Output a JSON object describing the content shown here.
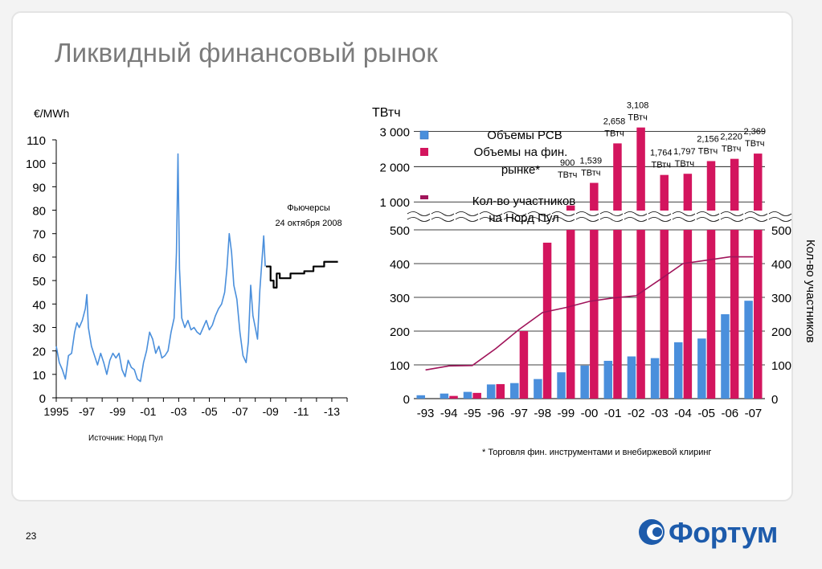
{
  "slide": {
    "title": "Ликвидный финансовый рынок",
    "page_number": "23",
    "logo_text": "Фортум",
    "colors": {
      "title": "#7b7b7b",
      "logo": "#1d5bab",
      "blue": "#4a8fdc",
      "magenta": "#d3155e",
      "line": "#a0145a"
    }
  },
  "chart_data": [
    {
      "type": "line",
      "unit_label": "€/MWh",
      "ylim": [
        0,
        110
      ],
      "y_ticks": [
        "0",
        "10",
        "20",
        "30",
        "40",
        "50",
        "60",
        "70",
        "80",
        "90",
        "100",
        "110"
      ],
      "x_tick_labels": [
        "1995",
        "-97",
        "-99",
        "-01",
        "-03",
        "-05",
        "-07",
        "-09",
        "-11",
        "-13"
      ],
      "xlim": [
        1995,
        2014
      ],
      "annotation": [
        "Фьючерсы",
        "24 октября 2008"
      ],
      "source": "Источник: Норд Пул",
      "series": [
        {
          "color": "#4a8fdc",
          "points": [
            [
              1995.0,
              22
            ],
            [
              1995.2,
              15
            ],
            [
              1995.4,
              12
            ],
            [
              1995.6,
              8
            ],
            [
              1995.8,
              18
            ],
            [
              1996.0,
              19
            ],
            [
              1996.2,
              28
            ],
            [
              1996.35,
              32
            ],
            [
              1996.5,
              30
            ],
            [
              1996.7,
              33
            ],
            [
              1996.9,
              38
            ],
            [
              1997.0,
              44
            ],
            [
              1997.1,
              30
            ],
            [
              1997.3,
              22
            ],
            [
              1997.5,
              18
            ],
            [
              1997.7,
              14
            ],
            [
              1997.9,
              19
            ],
            [
              1998.1,
              15
            ],
            [
              1998.3,
              10
            ],
            [
              1998.5,
              16
            ],
            [
              1998.7,
              19
            ],
            [
              1998.9,
              17
            ],
            [
              1999.1,
              19
            ],
            [
              1999.3,
              12
            ],
            [
              1999.5,
              9
            ],
            [
              1999.7,
              16
            ],
            [
              1999.9,
              13
            ],
            [
              2000.1,
              12
            ],
            [
              2000.3,
              8
            ],
            [
              2000.5,
              7
            ],
            [
              2000.7,
              15
            ],
            [
              2000.9,
              20
            ],
            [
              2001.1,
              28
            ],
            [
              2001.3,
              25
            ],
            [
              2001.5,
              19
            ],
            [
              2001.7,
              22
            ],
            [
              2001.9,
              17
            ],
            [
              2002.1,
              18
            ],
            [
              2002.3,
              20
            ],
            [
              2002.5,
              28
            ],
            [
              2002.7,
              34
            ],
            [
              2002.85,
              62
            ],
            [
              2002.95,
              104
            ],
            [
              2003.05,
              55
            ],
            [
              2003.2,
              34
            ],
            [
              2003.4,
              30
            ],
            [
              2003.6,
              33
            ],
            [
              2003.8,
              29
            ],
            [
              2004.0,
              30
            ],
            [
              2004.2,
              28
            ],
            [
              2004.4,
              27
            ],
            [
              2004.6,
              30
            ],
            [
              2004.8,
              33
            ],
            [
              2005.0,
              29
            ],
            [
              2005.2,
              31
            ],
            [
              2005.4,
              35
            ],
            [
              2005.6,
              38
            ],
            [
              2005.8,
              40
            ],
            [
              2006.0,
              45
            ],
            [
              2006.15,
              55
            ],
            [
              2006.3,
              70
            ],
            [
              2006.45,
              62
            ],
            [
              2006.6,
              48
            ],
            [
              2006.8,
              42
            ],
            [
              2007.0,
              28
            ],
            [
              2007.2,
              18
            ],
            [
              2007.4,
              15
            ],
            [
              2007.55,
              24
            ],
            [
              2007.7,
              48
            ],
            [
              2007.85,
              35
            ],
            [
              2008.0,
              30
            ],
            [
              2008.15,
              25
            ],
            [
              2008.3,
              46
            ],
            [
              2008.45,
              60
            ],
            [
              2008.55,
              69
            ],
            [
              2008.65,
              56
            ]
          ]
        },
        {
          "color": "#000000",
          "points": [
            [
              2008.7,
              56
            ],
            [
              2008.9,
              56
            ],
            [
              2009.0,
              50
            ],
            [
              2009.2,
              47
            ],
            [
              2009.4,
              53
            ],
            [
              2009.6,
              51
            ],
            [
              2009.8,
              51
            ],
            [
              2010.0,
              51
            ],
            [
              2010.3,
              53
            ],
            [
              2010.6,
              53
            ],
            [
              2010.9,
              53
            ],
            [
              2011.2,
              54
            ],
            [
              2011.5,
              54
            ],
            [
              2011.8,
              56
            ],
            [
              2012.2,
              56
            ],
            [
              2012.5,
              58
            ],
            [
              2013.0,
              58
            ],
            [
              2013.4,
              58
            ]
          ]
        }
      ]
    },
    {
      "type": "bar",
      "left_axis_label": "ТВтч",
      "upper_y_ticks": [
        "1 000",
        "2 000",
        "3 000"
      ],
      "upper_ylim": [
        800,
        3100
      ],
      "lower_ylim": [
        0,
        500
      ],
      "left_lower_ticks": [
        "0",
        "100",
        "200",
        "300",
        "400",
        "500"
      ],
      "right_ticks": [
        "0",
        "100",
        "200",
        "300",
        "400",
        "500"
      ],
      "right_axis_label": "Кол-во участников",
      "categories": [
        "-93",
        "-94",
        "-95",
        "-96",
        "-97",
        "-98",
        "-99",
        "-00",
        "-01",
        "-02",
        "-03",
        "-04",
        "-05",
        "-06",
        "-07"
      ],
      "series": [
        {
          "name": "Объемы РСВ",
          "color": "#4a8fdc",
          "values": [
            10,
            15,
            20,
            42,
            46,
            58,
            78,
            98,
            112,
            125,
            120,
            167,
            178,
            250,
            290
          ]
        },
        {
          "name": "Объемы на фин. рынке*",
          "color": "#d3155e",
          "values": [
            0,
            8,
            17,
            43,
            200,
            462,
            900,
            1539,
            2658,
            3108,
            1764,
            1797,
            2156,
            2220,
            2369
          ]
        },
        {
          "name": "Кол-во участников на Норд Пул",
          "color": "#a0145a",
          "type": "line",
          "values": [
            85,
            97,
            98,
            148,
            205,
            255,
            270,
            288,
            298,
            305,
            352,
            400,
            410,
            420,
            420
          ]
        }
      ],
      "data_labels": [
        {
          "index": 6,
          "lines": [
            "900",
            "ТВтч"
          ]
        },
        {
          "index": 7,
          "lines": [
            "1,539",
            "ТВтч"
          ]
        },
        {
          "index": 8,
          "lines": [
            "2,658",
            "ТВтч"
          ]
        },
        {
          "index": 9,
          "lines": [
            "3,108",
            "ТВтч"
          ]
        },
        {
          "index": 10,
          "lines": [
            "1,764",
            "ТВтч"
          ]
        },
        {
          "index": 11,
          "lines": [
            "1,797",
            "ТВтч"
          ]
        },
        {
          "index": 12,
          "lines": [
            "2,156",
            "ТВтч"
          ]
        },
        {
          "index": 13,
          "lines": [
            "2,220",
            "ТВтч"
          ]
        },
        {
          "index": 14,
          "lines": [
            "2,369",
            "ТВтч"
          ]
        }
      ],
      "legend_lines": {
        "s1": [
          "Объемы РСВ"
        ],
        "s2": [
          "Объемы на фин.",
          "рынке*"
        ],
        "s3": [
          "Кол-во участников",
          "на Норд Пул"
        ]
      },
      "footnote": "* Торговля фин. инструментами и внебиржевой клиринг"
    }
  ]
}
